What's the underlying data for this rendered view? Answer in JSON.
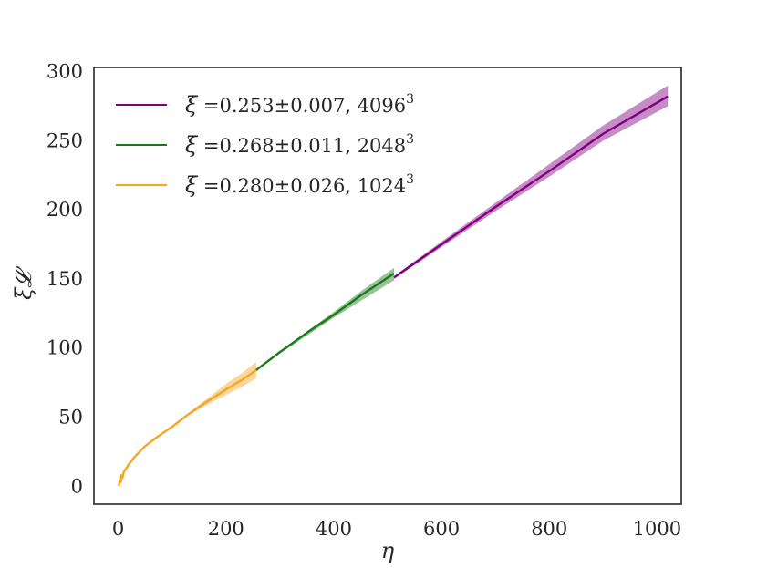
{
  "chart_data": {
    "type": "line",
    "xlabel": "η",
    "ylabel": "ξ𝓛",
    "xlim": [
      -45,
      1045
    ],
    "ylim": [
      -13,
      303
    ],
    "xticks": [
      0,
      200,
      400,
      600,
      800,
      1000
    ],
    "yticks": [
      0,
      50,
      100,
      150,
      200,
      250,
      300
    ],
    "grid": false,
    "legend_position": "top-left",
    "series": [
      {
        "name": "ξ̇ =0.253±0.007, 4096³",
        "legend_symbol": "ξ̇",
        "legend_text": " =0.253±0.007, ",
        "legend_res": "4096",
        "legend_exp": "3",
        "color": "#800080",
        "x": [
          512,
          600,
          700,
          800,
          900,
          1020
        ],
        "y": [
          151,
          175,
          202,
          228,
          255,
          282
        ],
        "band_lower": [
          150,
          173,
          199,
          224,
          250,
          275
        ],
        "band_upper": [
          152,
          177,
          205,
          233,
          261,
          290
        ]
      },
      {
        "name": "ξ̇ =0.268±0.011, 2048³",
        "legend_symbol": "ξ̇",
        "legend_text": " =0.268±0.011, ",
        "legend_res": "2048",
        "legend_exp": "3",
        "color": "#1a7a1a",
        "x": [
          256,
          300,
          350,
          400,
          450,
          512
        ],
        "y": [
          84,
          97,
          111,
          124,
          138,
          154
        ],
        "band_lower": [
          84,
          96,
          109,
          122,
          134,
          149
        ],
        "band_upper": [
          84,
          97,
          112,
          126,
          141,
          158
        ]
      },
      {
        "name": "ξ̇ =0.280±0.026, 1024³",
        "legend_symbol": "ξ̇",
        "legend_text": " =0.280±0.026, ",
        "legend_res": "1024",
        "legend_exp": "3",
        "color": "#f5a623",
        "x": [
          1,
          3,
          5,
          6,
          8,
          10,
          15,
          20,
          30,
          40,
          50,
          70,
          100,
          130,
          160,
          200,
          230,
          256
        ],
        "y": [
          0,
          4,
          3,
          8,
          6,
          10,
          13,
          16,
          21,
          25,
          29,
          35,
          43,
          52,
          60,
          70,
          77,
          84
        ],
        "band_lower": [
          0,
          4,
          3,
          8,
          6,
          10,
          13,
          16,
          21,
          25,
          29,
          35,
          43,
          51,
          58,
          66,
          72,
          78
        ],
        "band_upper": [
          0,
          4,
          3,
          8,
          6,
          10,
          13,
          16,
          21,
          25,
          29,
          35,
          43,
          53,
          62,
          74,
          82,
          90
        ]
      }
    ]
  }
}
